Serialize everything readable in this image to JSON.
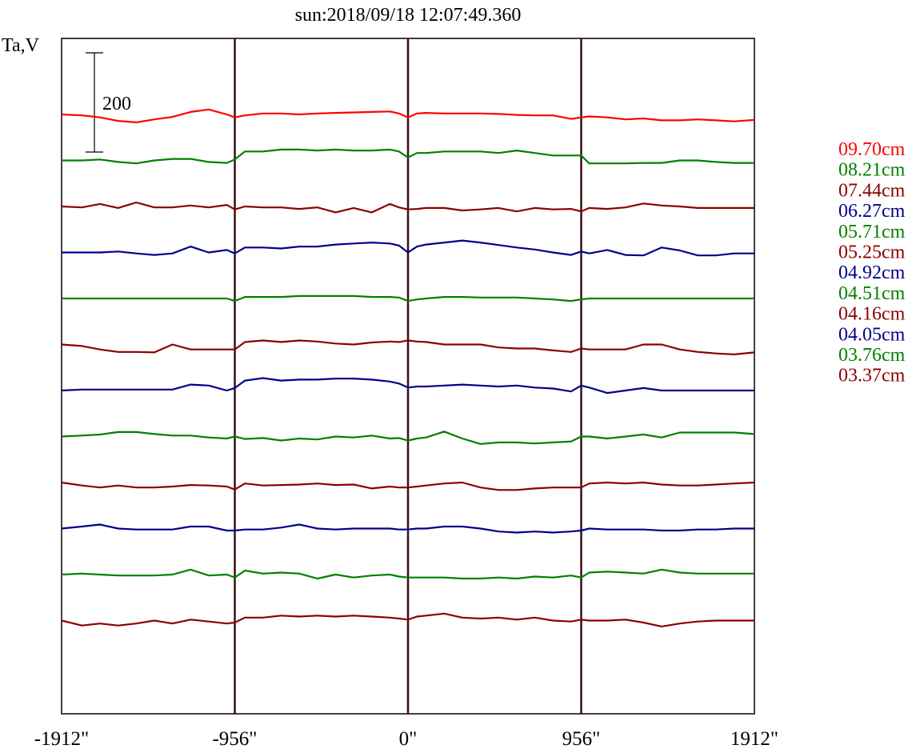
{
  "chart_data": {
    "type": "line",
    "title": "sun:2018/09/18 12:07:49.360",
    "ylabel": "Ta,V",
    "scale_bar_label": "200",
    "x_ticks": [
      "-1912\"",
      "-956\"",
      "0\"",
      "956\"",
      "1912\""
    ],
    "xlim": [
      -1912,
      1912
    ],
    "grid_x": [
      -956,
      0,
      956
    ],
    "colors": {
      "title": "#1a1a66",
      "axis": "#000000",
      "grid": "#3a1010",
      "red": "#ff0000",
      "green": "#008000",
      "darkred": "#8b0000",
      "blue": "#00008b"
    },
    "series": [
      {
        "name": "09.70cm",
        "color": "#ff0000",
        "x": [
          -1912,
          -1800,
          -1700,
          -1600,
          -1500,
          -1400,
          -1300,
          -1200,
          -1100,
          -1000,
          -956,
          -900,
          -800,
          -700,
          -600,
          -500,
          -400,
          -300,
          -200,
          -100,
          -50,
          0,
          50,
          100,
          200,
          300,
          400,
          500,
          600,
          700,
          800,
          900,
          956,
          1000,
          1100,
          1200,
          1300,
          1400,
          1500,
          1600,
          1700,
          1800,
          1912
        ],
        "y": [
          0,
          -2,
          -6,
          -13,
          -16,
          -10,
          -5,
          5,
          10,
          0,
          -6,
          -2,
          2,
          2,
          0,
          2,
          3,
          4,
          5,
          6,
          2,
          -6,
          2,
          3,
          2,
          2,
          2,
          1,
          -1,
          -2,
          -2,
          -9,
          -6,
          -4,
          -6,
          -10,
          -8,
          -12,
          -12,
          -10,
          -12,
          -14,
          -11
        ]
      },
      {
        "name": "08.21cm",
        "color": "#008000",
        "x": [
          -1912,
          -1800,
          -1700,
          -1600,
          -1500,
          -1400,
          -1300,
          -1200,
          -1100,
          -1000,
          -956,
          -900,
          -800,
          -700,
          -600,
          -500,
          -400,
          -300,
          -200,
          -100,
          -50,
          0,
          50,
          100,
          200,
          300,
          400,
          500,
          600,
          700,
          800,
          900,
          956,
          1000,
          1100,
          1200,
          1300,
          1400,
          1500,
          1600,
          1700,
          1800,
          1912
        ],
        "y": [
          0,
          0,
          2,
          -3,
          -6,
          0,
          3,
          3,
          -3,
          -5,
          2,
          18,
          18,
          22,
          22,
          20,
          22,
          20,
          20,
          22,
          18,
          6,
          15,
          15,
          18,
          18,
          18,
          15,
          20,
          15,
          10,
          10,
          10,
          -6,
          -6,
          -6,
          -5,
          -5,
          0,
          0,
          -3,
          -5,
          -5
        ]
      },
      {
        "name": "07.44cm",
        "color": "#8b0000",
        "x": [
          -1912,
          -1800,
          -1700,
          -1600,
          -1500,
          -1400,
          -1300,
          -1200,
          -1100,
          -1000,
          -956,
          -900,
          -800,
          -700,
          -600,
          -500,
          -400,
          -300,
          -200,
          -100,
          -50,
          0,
          50,
          100,
          200,
          300,
          400,
          500,
          600,
          700,
          800,
          900,
          956,
          1000,
          1100,
          1200,
          1300,
          1400,
          1500,
          1600,
          1700,
          1800,
          1912
        ],
        "y": [
          0,
          -2,
          5,
          -3,
          8,
          -2,
          -2,
          2,
          -2,
          3,
          -6,
          0,
          -2,
          -2,
          -5,
          -2,
          -12,
          -3,
          -12,
          5,
          -2,
          -6,
          -5,
          -3,
          -3,
          -8,
          -6,
          -3,
          -10,
          -3,
          -6,
          -5,
          -10,
          -3,
          -5,
          -2,
          6,
          2,
          0,
          -3,
          -3,
          -3,
          -3
        ]
      },
      {
        "name": "06.27cm",
        "color": "#00008b",
        "x": [
          -1912,
          -1800,
          -1700,
          -1600,
          -1500,
          -1400,
          -1300,
          -1200,
          -1100,
          -1000,
          -956,
          -900,
          -800,
          -700,
          -600,
          -500,
          -400,
          -300,
          -200,
          -100,
          -50,
          0,
          50,
          100,
          200,
          300,
          400,
          500,
          600,
          700,
          800,
          900,
          956,
          1000,
          1100,
          1200,
          1300,
          1400,
          1500,
          1600,
          1700,
          1800,
          1912
        ],
        "y": [
          0,
          0,
          0,
          2,
          -2,
          -5,
          -2,
          12,
          0,
          5,
          -2,
          10,
          10,
          8,
          12,
          12,
          16,
          18,
          20,
          18,
          14,
          0,
          12,
          16,
          20,
          24,
          20,
          15,
          10,
          6,
          0,
          -5,
          2,
          -2,
          5,
          -5,
          -6,
          10,
          4,
          -6,
          -6,
          -2,
          -2
        ]
      },
      {
        "name": "05.71cm",
        "color": "#008000",
        "x": [
          -1912,
          -1800,
          -1700,
          -1600,
          -1500,
          -1400,
          -1300,
          -1200,
          -1100,
          -1000,
          -956,
          -900,
          -800,
          -700,
          -600,
          -500,
          -400,
          -300,
          -200,
          -100,
          -50,
          0,
          50,
          100,
          200,
          300,
          400,
          500,
          600,
          700,
          800,
          900,
          956,
          1000,
          1100,
          1200,
          1300,
          1400,
          1500,
          1600,
          1700,
          1800,
          1912
        ],
        "y": [
          0,
          0,
          0,
          0,
          0,
          0,
          0,
          0,
          0,
          0,
          -5,
          3,
          3,
          3,
          5,
          5,
          5,
          5,
          3,
          3,
          2,
          -5,
          -2,
          0,
          3,
          3,
          2,
          2,
          2,
          0,
          -2,
          -5,
          -2,
          0,
          0,
          0,
          0,
          0,
          0,
          0,
          0,
          0,
          0
        ]
      },
      {
        "name": "05.25cm",
        "color": "#8b0000",
        "x": [
          -1912,
          -1800,
          -1700,
          -1600,
          -1500,
          -1400,
          -1300,
          -1200,
          -1100,
          -1000,
          -956,
          -900,
          -800,
          -700,
          -600,
          -500,
          -400,
          -300,
          -200,
          -100,
          -50,
          0,
          50,
          100,
          200,
          300,
          400,
          500,
          600,
          700,
          800,
          900,
          956,
          1000,
          1100,
          1200,
          1300,
          1400,
          1500,
          1600,
          1700,
          1800,
          1912
        ],
        "y": [
          0,
          -3,
          -10,
          -15,
          -15,
          -16,
          0,
          -10,
          -10,
          -10,
          -10,
          5,
          8,
          5,
          8,
          6,
          2,
          0,
          4,
          6,
          5,
          8,
          6,
          5,
          0,
          0,
          0,
          -6,
          -8,
          -8,
          -12,
          -15,
          -8,
          -10,
          -10,
          -10,
          0,
          0,
          -10,
          -15,
          -18,
          -20,
          -16
        ]
      },
      {
        "name": "04.92cm",
        "color": "#00008b",
        "x": [
          -1912,
          -1800,
          -1700,
          -1600,
          -1500,
          -1400,
          -1300,
          -1200,
          -1100,
          -1000,
          -956,
          -900,
          -800,
          -700,
          -600,
          -500,
          -400,
          -300,
          -200,
          -100,
          -50,
          0,
          50,
          100,
          200,
          300,
          400,
          500,
          600,
          700,
          800,
          900,
          956,
          1000,
          1100,
          1200,
          1300,
          1400,
          1500,
          1600,
          1700,
          1800,
          1912
        ],
        "y": [
          0,
          2,
          2,
          2,
          2,
          2,
          2,
          12,
          10,
          0,
          5,
          20,
          25,
          20,
          22,
          22,
          24,
          24,
          22,
          18,
          14,
          6,
          8,
          8,
          10,
          12,
          10,
          8,
          10,
          6,
          4,
          -2,
          10,
          6,
          -5,
          0,
          5,
          0,
          0,
          0,
          0,
          0,
          0
        ]
      },
      {
        "name": "04.51cm",
        "color": "#008000",
        "x": [
          -1912,
          -1800,
          -1700,
          -1600,
          -1500,
          -1400,
          -1300,
          -1200,
          -1100,
          -1000,
          -956,
          -900,
          -800,
          -700,
          -600,
          -500,
          -400,
          -300,
          -200,
          -100,
          -50,
          0,
          50,
          100,
          200,
          300,
          400,
          500,
          600,
          700,
          800,
          900,
          956,
          1000,
          1100,
          1200,
          1300,
          1400,
          1500,
          1600,
          1700,
          1800,
          1912
        ],
        "y": [
          0,
          2,
          4,
          9,
          9,
          5,
          2,
          2,
          -2,
          -4,
          0,
          -5,
          -3,
          -8,
          -4,
          -6,
          0,
          -2,
          2,
          -4,
          -3,
          -8,
          -4,
          -2,
          10,
          -4,
          -15,
          -12,
          -12,
          -14,
          -12,
          -10,
          0,
          0,
          -4,
          0,
          4,
          -2,
          8,
          8,
          8,
          8,
          5
        ]
      },
      {
        "name": "04.16cm",
        "color": "#8b0000",
        "x": [
          -1912,
          -1800,
          -1700,
          -1600,
          -1500,
          -1400,
          -1300,
          -1200,
          -1100,
          -1000,
          -956,
          -900,
          -800,
          -700,
          -600,
          -500,
          -400,
          -300,
          -200,
          -100,
          -50,
          0,
          50,
          100,
          200,
          300,
          400,
          500,
          600,
          700,
          800,
          900,
          956,
          1000,
          1100,
          1200,
          1300,
          1400,
          1500,
          1600,
          1700,
          1800,
          1912
        ],
        "y": [
          0,
          -6,
          -10,
          -6,
          -10,
          -10,
          -8,
          -5,
          -6,
          -8,
          -14,
          -2,
          -6,
          -5,
          -4,
          -2,
          -5,
          -4,
          -12,
          -8,
          -10,
          -10,
          -8,
          -6,
          -2,
          0,
          -10,
          -15,
          -15,
          -12,
          -10,
          -10,
          -10,
          -2,
          0,
          -2,
          0,
          -4,
          -6,
          -6,
          -4,
          -2,
          0
        ]
      },
      {
        "name": "04.05cm",
        "color": "#00008b",
        "x": [
          -1912,
          -1800,
          -1700,
          -1600,
          -1500,
          -1400,
          -1300,
          -1200,
          -1100,
          -1000,
          -956,
          -900,
          -800,
          -700,
          -600,
          -500,
          -400,
          -300,
          -200,
          -100,
          -50,
          0,
          50,
          100,
          200,
          300,
          400,
          500,
          600,
          700,
          800,
          900,
          956,
          1000,
          1100,
          1200,
          1300,
          1400,
          1500,
          1600,
          1700,
          1800,
          1912
        ],
        "y": [
          0,
          4,
          8,
          0,
          -2,
          -2,
          -2,
          4,
          4,
          -4,
          -4,
          -2,
          -2,
          2,
          8,
          0,
          -2,
          0,
          0,
          0,
          -2,
          -2,
          0,
          0,
          4,
          4,
          0,
          -6,
          -8,
          -6,
          -8,
          -6,
          -4,
          0,
          -2,
          -2,
          -2,
          -4,
          -4,
          -2,
          -2,
          0,
          0
        ]
      },
      {
        "name": "03.76cm",
        "color": "#008000",
        "x": [
          -1912,
          -1800,
          -1700,
          -1600,
          -1500,
          -1400,
          -1300,
          -1200,
          -1100,
          -1000,
          -956,
          -900,
          -800,
          -700,
          -600,
          -500,
          -400,
          -300,
          -200,
          -100,
          -50,
          0,
          50,
          100,
          200,
          300,
          400,
          500,
          600,
          700,
          800,
          900,
          956,
          1000,
          1100,
          1200,
          1300,
          1400,
          1500,
          1600,
          1700,
          1800,
          1912
        ],
        "y": [
          0,
          2,
          0,
          -2,
          -2,
          -2,
          0,
          10,
          -2,
          0,
          -6,
          8,
          2,
          4,
          2,
          -8,
          0,
          -6,
          -2,
          0,
          -4,
          -6,
          -6,
          -6,
          -6,
          -8,
          -8,
          -6,
          -8,
          -4,
          -6,
          -2,
          -6,
          4,
          6,
          4,
          2,
          10,
          4,
          2,
          2,
          2,
          2
        ]
      },
      {
        "name": "03.37cm",
        "color": "#8b0000",
        "x": [
          -1912,
          -1800,
          -1700,
          -1600,
          -1500,
          -1400,
          -1300,
          -1200,
          -1100,
          -1000,
          -956,
          -900,
          -800,
          -700,
          -600,
          -500,
          -400,
          -300,
          -200,
          -100,
          -50,
          0,
          50,
          100,
          200,
          300,
          400,
          500,
          600,
          700,
          800,
          900,
          956,
          1000,
          1100,
          1200,
          1300,
          1400,
          1500,
          1600,
          1700,
          1800,
          1912
        ],
        "y": [
          0,
          -10,
          -6,
          -10,
          -6,
          0,
          -6,
          2,
          -2,
          -6,
          -4,
          6,
          6,
          10,
          8,
          10,
          8,
          10,
          8,
          6,
          4,
          2,
          8,
          10,
          14,
          6,
          4,
          6,
          2,
          6,
          0,
          -2,
          2,
          0,
          0,
          2,
          -4,
          -12,
          -6,
          -2,
          0,
          0,
          0
        ]
      }
    ]
  }
}
